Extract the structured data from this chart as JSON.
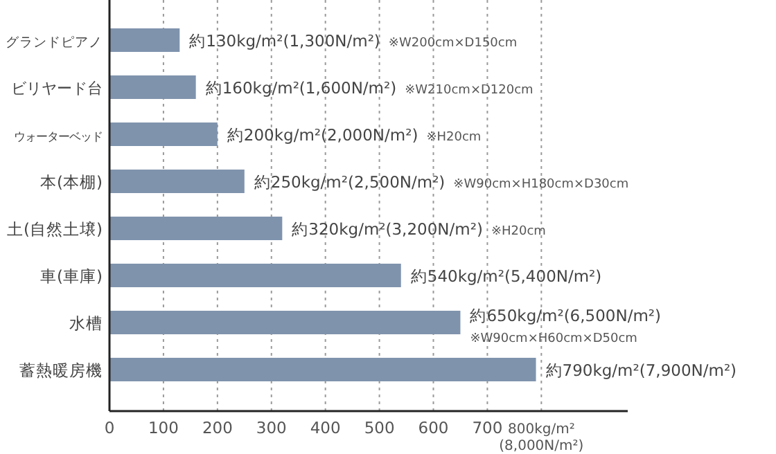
{
  "chart_data": {
    "type": "bar",
    "orientation": "horizontal",
    "categories": [
      "グランドピアノ",
      "ビリヤード台",
      "ウォーターベッド",
      "本(本棚)",
      "土(自然土壌)",
      "車(車庫)",
      "水槽",
      "蓄熱暖房機"
    ],
    "values": [
      130,
      160,
      200,
      250,
      320,
      540,
      650,
      790
    ],
    "color": "#7f93ad",
    "value_labels": [
      "約130kg/m²(1,300N/m²) ※W200cm×D150cm",
      "約160kg/m²(1,600N/m²) ※W210cm×D120cm",
      "約200kg/m²(2,000N/m²) ※H20cm",
      "約250kg/m²(2,500N/m²) ※W90cm×H180cm×D30cm",
      "約320kg/m²(3,200N/m²) ※H20cm",
      "約540kg/m²(5,400N/m²)",
      "約650kg/m²(6,500N/m²) ※W90cm×H60cm×D50cm",
      "約790kg/m²(7,900N/m²)"
    ],
    "xlim": [
      0,
      960
    ],
    "xticks": [
      0,
      100,
      200,
      300,
      400,
      500,
      600,
      700,
      {
        "value": 800,
        "label": "800kg/m²\n(8,000N/m²)"
      }
    ],
    "grid": "x"
  }
}
